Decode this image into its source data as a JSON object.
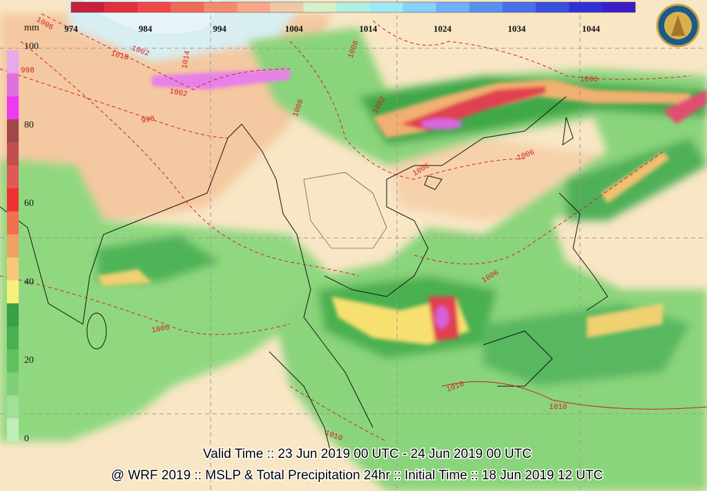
{
  "pressure_scale": {
    "labels": [
      "974",
      "984",
      "994",
      "1004",
      "1014",
      "1024",
      "1034",
      "1044"
    ],
    "colors": [
      "#c8203c",
      "#e0303c",
      "#f04848",
      "#f06a5a",
      "#f48a70",
      "#f8a888",
      "#f0c8a8",
      "#d8f0c8",
      "#b0f0e0",
      "#a0e8f8",
      "#88d0f8",
      "#70b0f8",
      "#5890f0",
      "#4870e8",
      "#3850e0",
      "#3030d8",
      "#3a1ec8"
    ]
  },
  "precip_scale": {
    "unit": "mm",
    "labels": [
      "100",
      "80",
      "60",
      "40",
      "20",
      "0"
    ],
    "colors": [
      "#e8a8ec",
      "#e070e0",
      "#f038f0",
      "#a04848",
      "#c05050",
      "#e05858",
      "#f03030",
      "#f07050",
      "#f0a060",
      "#f8c878",
      "#f8f078",
      "#38a048",
      "#48b050",
      "#60c060",
      "#80d078",
      "#a0e098",
      "#c0eeb8"
    ]
  },
  "isobar_labels": [
    "1006",
    "1002",
    "998",
    "1010",
    "1014",
    "998",
    "1002",
    "1006",
    "1006",
    "1002",
    "1006",
    "1006",
    "1006",
    "1006",
    "1010",
    "1010",
    "1010",
    "1006"
  ],
  "footer": {
    "valid_time": "Valid Time :: 23 Jun 2019 00 UTC - 24 Jun 2019 00 UTC",
    "model_info": "@ WRF 2019 :: MSLP & Total Precipitation 24hr :: Initial Time :: 18 Jun 2019 12 UTC"
  }
}
